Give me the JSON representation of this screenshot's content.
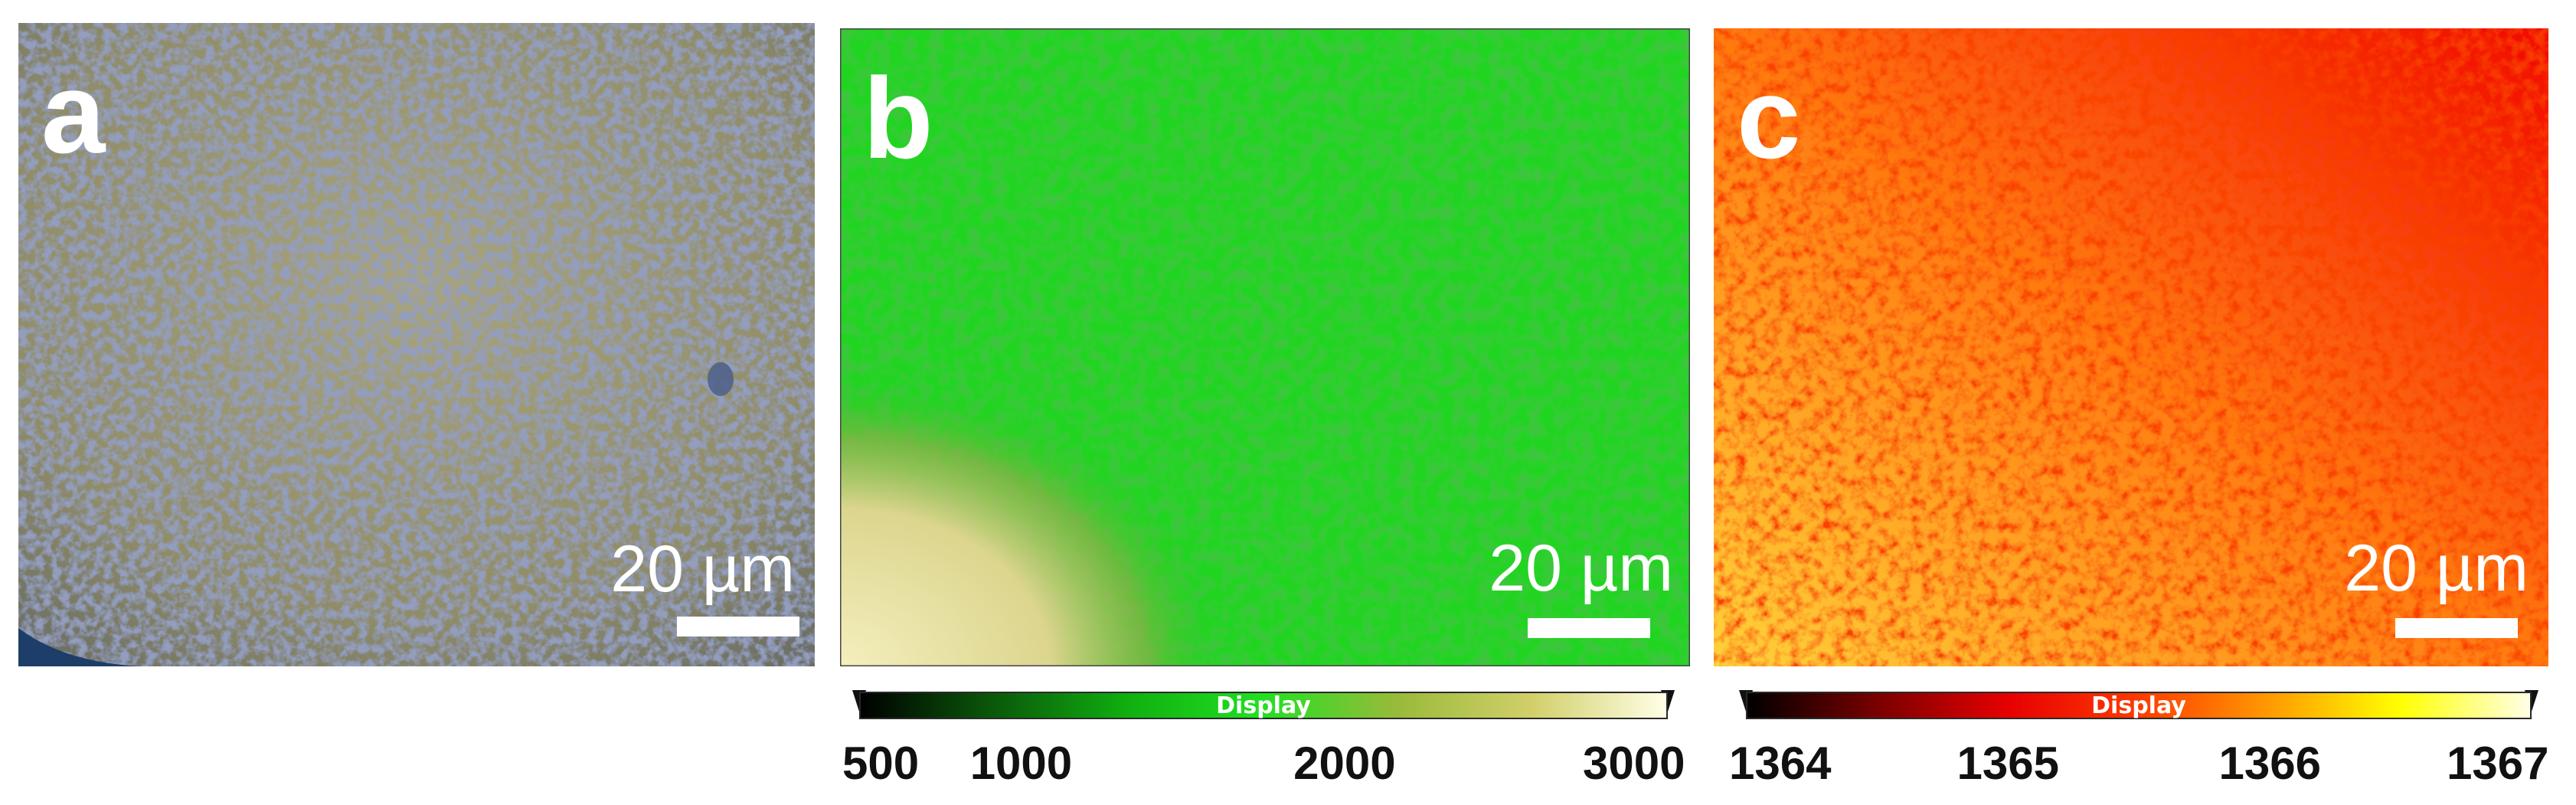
{
  "panels": [
    {
      "id": "a",
      "letter": "a",
      "description_kind": "optical micrograph",
      "scale_bar_label": "20 µm",
      "colors": {
        "base": "#8f8c68",
        "spot": "#4e5d83"
      }
    },
    {
      "id": "b",
      "letter": "b",
      "description_kind": "intensity map",
      "scale_bar_label": "20 µm",
      "colors": {
        "base": "#1fce1f",
        "spot": "#0c8a0c",
        "high": "#e9e3a1"
      }
    },
    {
      "id": "c",
      "letter": "c",
      "description_kind": "peak position map",
      "scale_bar_label": "20 µm",
      "colors": {
        "base": "#ff7a10",
        "spot": "#f00000",
        "high": "#ffd84d"
      }
    }
  ],
  "colorbars": [
    {
      "id": "b",
      "caption": "Display",
      "ticks": [
        "500",
        "1000",
        "2000",
        "3000"
      ],
      "tick_values": [
        500,
        1000,
        2000,
        3000
      ],
      "range": [
        500,
        3000
      ],
      "gradient": [
        "#000000",
        "#0a5a0a",
        "#10b010",
        "#22e022",
        "#9aba3a",
        "#d2cf6a",
        "#ffffe6"
      ]
    },
    {
      "id": "c",
      "caption": "Display",
      "ticks": [
        "1364",
        "1365",
        "1366",
        "1367"
      ],
      "tick_values": [
        1364,
        1365,
        1366,
        1367
      ],
      "range": [
        1364,
        1367
      ],
      "gradient": [
        "#000000",
        "#7a0000",
        "#e60000",
        "#ff3a00",
        "#ff9a00",
        "#ffff00",
        "#ffffe6"
      ]
    }
  ]
}
